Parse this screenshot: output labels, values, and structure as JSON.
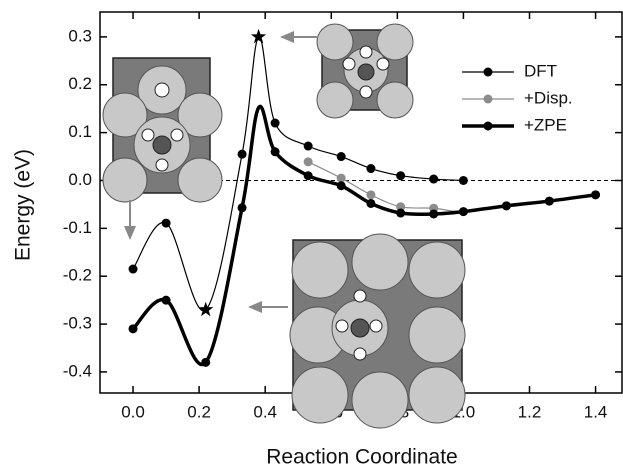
{
  "chart_data": {
    "type": "line",
    "x_label": "Reaction Coordinate",
    "y_label": "Energy  (eV)",
    "xlim": [
      -0.1,
      1.48
    ],
    "ylim": [
      -0.444,
      0.352
    ],
    "xticks": [
      {
        "value": 0,
        "label": "0.0"
      },
      0.2,
      0.4,
      0.6,
      0.8,
      {
        "value": 1,
        "label": "1.0"
      },
      1.2,
      1.4
    ],
    "yticks": [
      -0.4,
      -0.3,
      -0.2,
      -0.1,
      {
        "value": 0,
        "label": "0.0"
      },
      0.1,
      0.2,
      0.3
    ],
    "zero_line": true,
    "series": [
      {
        "name": "DFT",
        "color": "#000000",
        "width": 1.2,
        "x": [
          0,
          0.1,
          0.22,
          0.33,
          0.38,
          0.43,
          0.53,
          0.63,
          0.72,
          0.81,
          0.91,
          1.0
        ],
        "values": [
          -0.185,
          -0.089,
          -0.27,
          0.055,
          0.3,
          0.12,
          0.072,
          0.05,
          0.025,
          0.01,
          0.003,
          0
        ],
        "markers": [
          "circle",
          "circle",
          "star",
          "circle",
          "star",
          "circle",
          "circle",
          "circle",
          "circle",
          "circle",
          "circle",
          "circle"
        ]
      },
      {
        "name": "+Disp.",
        "color": "#8c8c8c",
        "width": 1.2,
        "x": [
          0.53,
          0.63,
          0.72,
          0.81,
          0.91,
          1.0,
          1.13,
          1.26,
          1.4
        ],
        "values": [
          0.039,
          0.005,
          -0.03,
          -0.055,
          -0.058,
          -0.065,
          -0.053,
          -0.043,
          -0.03
        ],
        "markers": [
          "circle",
          "circle",
          "circle",
          "circle",
          "circle",
          "circle",
          "circle",
          "circle",
          "circle"
        ]
      },
      {
        "name": "+ZPE",
        "color": "#000000",
        "width": 3.5,
        "x": [
          0,
          0.1,
          0.22,
          0.33,
          0.38,
          0.43,
          0.53,
          0.63,
          0.72,
          0.81,
          0.91,
          1.0,
          1.13,
          1.26,
          1.4
        ],
        "values": [
          -0.31,
          -0.25,
          -0.38,
          -0.057,
          0.152,
          0.06,
          0.01,
          -0.011,
          -0.048,
          -0.068,
          -0.07,
          -0.065,
          -0.053,
          -0.043,
          -0.03
        ],
        "markers": [
          "circle",
          "circle",
          "circle",
          "circle",
          "none",
          "circle",
          "circle",
          "circle",
          "circle",
          "circle",
          "circle",
          "circle",
          "circle",
          "circle",
          "circle"
        ]
      }
    ]
  }
}
